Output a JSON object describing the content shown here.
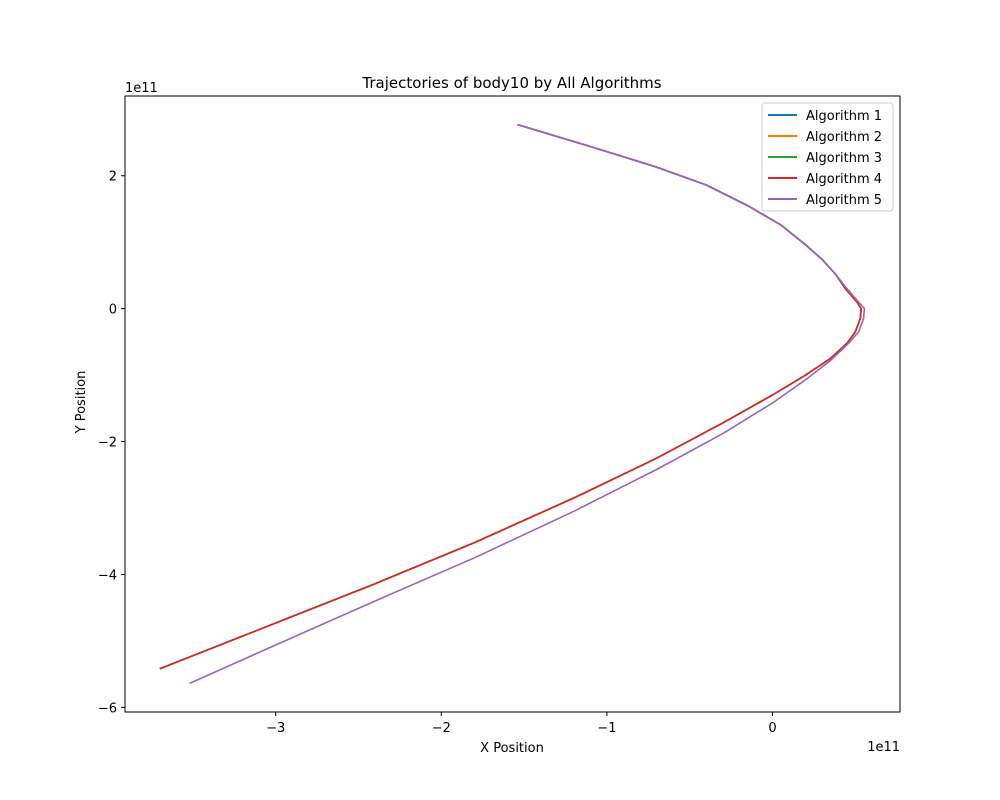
{
  "chart_data": {
    "type": "line",
    "title": "Trajectories of body10 by All Algorithms",
    "xlabel": "X Position",
    "ylabel": "Y Position",
    "x_offset_text": "1e11",
    "y_offset_text": "1e11",
    "xlim": [
      -3.91,
      0.77
    ],
    "ylim": [
      -6.07,
      3.2
    ],
    "xticks": [
      -3,
      -2,
      -1,
      0
    ],
    "xtick_labels": [
      "−3",
      "−2",
      "−1",
      "0"
    ],
    "yticks": [
      -6,
      -4,
      -2,
      0,
      2
    ],
    "ytick_labels": [
      "−6",
      "−4",
      "−2",
      "0",
      "2"
    ],
    "grid": false,
    "legend_position": "top-right",
    "series": [
      {
        "name": "Algorithm 1",
        "color": "#1f77b4",
        "x": [
          -1.54,
          -1.1,
          -0.7,
          -0.4,
          -0.15,
          0.05,
          0.2,
          0.3,
          0.38,
          0.44,
          0.51,
          0.535,
          0.53,
          0.5,
          0.45,
          0.35,
          0.2,
          0.0,
          -0.3,
          -0.7,
          -1.2,
          -1.8,
          -2.4,
          -3.0,
          -3.7
        ],
        "y": [
          2.77,
          2.44,
          2.13,
          1.86,
          1.55,
          1.26,
          0.96,
          0.74,
          0.52,
          0.3,
          0.1,
          0.0,
          -0.15,
          -0.35,
          -0.52,
          -0.75,
          -1.0,
          -1.3,
          -1.72,
          -2.25,
          -2.85,
          -3.52,
          -4.14,
          -4.73,
          -5.42
        ]
      },
      {
        "name": "Algorithm 2",
        "color": "#ff7f0e",
        "x": [
          -1.54,
          -1.1,
          -0.7,
          -0.4,
          -0.15,
          0.05,
          0.2,
          0.3,
          0.38,
          0.44,
          0.51,
          0.535,
          0.53,
          0.5,
          0.45,
          0.35,
          0.2,
          0.0,
          -0.3,
          -0.7,
          -1.2,
          -1.8,
          -2.4,
          -3.0,
          -3.7
        ],
        "y": [
          2.77,
          2.44,
          2.13,
          1.86,
          1.55,
          1.26,
          0.96,
          0.74,
          0.52,
          0.3,
          0.1,
          0.0,
          -0.15,
          -0.35,
          -0.52,
          -0.75,
          -1.0,
          -1.3,
          -1.72,
          -2.25,
          -2.85,
          -3.52,
          -4.14,
          -4.73,
          -5.42
        ]
      },
      {
        "name": "Algorithm 3",
        "color": "#2ca02c",
        "x": [
          -1.54,
          -1.1,
          -0.7,
          -0.4,
          -0.15,
          0.05,
          0.2,
          0.3,
          0.38,
          0.44,
          0.51,
          0.535,
          0.53,
          0.5,
          0.45,
          0.35,
          0.2,
          0.0,
          -0.3,
          -0.7,
          -1.2,
          -1.8,
          -2.4,
          -3.0,
          -3.7
        ],
        "y": [
          2.77,
          2.44,
          2.13,
          1.86,
          1.55,
          1.26,
          0.96,
          0.74,
          0.52,
          0.3,
          0.1,
          0.0,
          -0.15,
          -0.35,
          -0.52,
          -0.75,
          -1.0,
          -1.3,
          -1.72,
          -2.25,
          -2.85,
          -3.52,
          -4.14,
          -4.73,
          -5.42
        ]
      },
      {
        "name": "Algorithm 4",
        "color": "#d62728",
        "x": [
          -1.54,
          -1.1,
          -0.7,
          -0.4,
          -0.15,
          0.05,
          0.2,
          0.3,
          0.38,
          0.44,
          0.51,
          0.535,
          0.53,
          0.5,
          0.45,
          0.35,
          0.2,
          0.0,
          -0.3,
          -0.7,
          -1.2,
          -1.8,
          -2.4,
          -3.0,
          -3.7
        ],
        "y": [
          2.77,
          2.44,
          2.13,
          1.86,
          1.55,
          1.26,
          0.96,
          0.74,
          0.52,
          0.3,
          0.1,
          0.0,
          -0.15,
          -0.35,
          -0.52,
          -0.75,
          -1.0,
          -1.3,
          -1.72,
          -2.25,
          -2.85,
          -3.52,
          -4.14,
          -4.73,
          -5.42
        ]
      },
      {
        "name": "Algorithm 5",
        "color": "#9467bd",
        "x": [
          -1.54,
          -1.1,
          -0.7,
          -0.4,
          -0.15,
          0.05,
          0.2,
          0.3,
          0.38,
          0.45,
          0.52,
          0.555,
          0.55,
          0.52,
          0.46,
          0.35,
          0.2,
          0.0,
          -0.3,
          -0.7,
          -1.2,
          -1.8,
          -2.4,
          -2.9,
          -3.52
        ],
        "y": [
          2.77,
          2.44,
          2.13,
          1.86,
          1.55,
          1.26,
          0.96,
          0.74,
          0.52,
          0.3,
          0.1,
          0.0,
          -0.15,
          -0.35,
          -0.52,
          -0.78,
          -1.07,
          -1.42,
          -1.88,
          -2.42,
          -3.05,
          -3.75,
          -4.4,
          -4.95,
          -5.64
        ]
      }
    ]
  }
}
